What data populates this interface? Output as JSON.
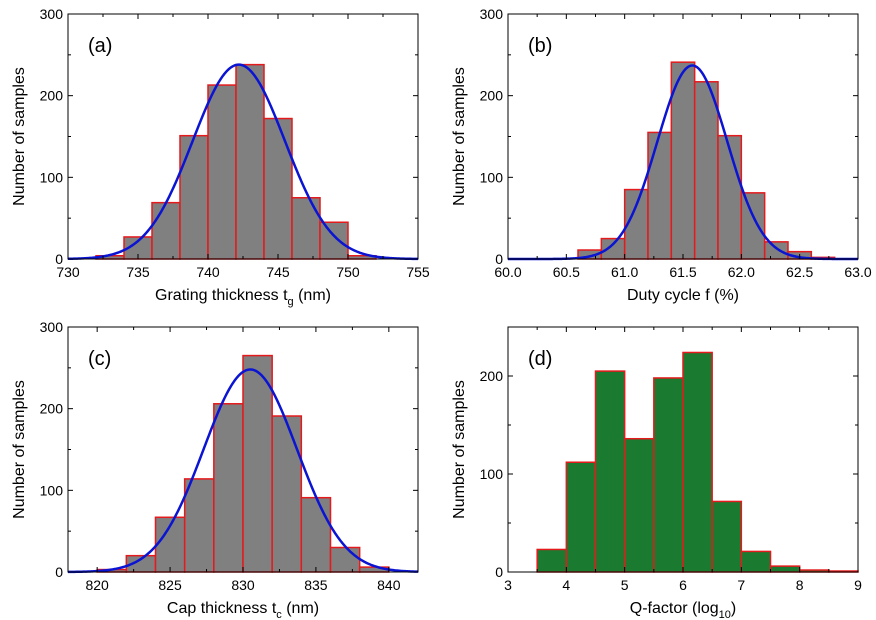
{
  "colors": {
    "gray_fill": "#808080",
    "red_edge": "#e41a1c",
    "green_fill": "#1a7a30",
    "curve": "#0a14d2"
  },
  "chart_data": [
    {
      "id": "a",
      "type": "bar",
      "panel_label": "(a)",
      "xlabel": "Grating thickness t",
      "xlabel_sub": "g",
      "xlabel_suffix": " (nm)",
      "ylabel": "Number of samples",
      "xlim": [
        730,
        755
      ],
      "ylim": [
        0,
        300
      ],
      "xticks": [
        730,
        735,
        740,
        745,
        750,
        755
      ],
      "xtick_labels": [
        "730",
        "735",
        "740",
        "745",
        "750",
        "755"
      ],
      "yticks": [
        0,
        100,
        200,
        300
      ],
      "ytick_labels": [
        "0",
        "100",
        "200",
        "300"
      ],
      "bins": [
        {
          "x0": 732,
          "x1": 734,
          "value": 4
        },
        {
          "x0": 734,
          "x1": 736,
          "value": 27
        },
        {
          "x0": 736,
          "x1": 738,
          "value": 69
        },
        {
          "x0": 738,
          "x1": 740,
          "value": 151
        },
        {
          "x0": 740,
          "x1": 742,
          "value": 213
        },
        {
          "x0": 742,
          "x1": 744,
          "value": 238
        },
        {
          "x0": 744,
          "x1": 746,
          "value": 172
        },
        {
          "x0": 746,
          "x1": 748,
          "value": 75
        },
        {
          "x0": 748,
          "x1": 750,
          "value": 45
        },
        {
          "x0": 750,
          "x1": 752,
          "value": 4
        }
      ],
      "fit": {
        "mean": 742.2,
        "sigma": 3.3,
        "peak": 238
      },
      "fill": "gray"
    },
    {
      "id": "b",
      "type": "bar",
      "panel_label": "(b)",
      "xlabel": "Duty cycle f (%)",
      "xlabel_sub": "",
      "xlabel_suffix": "",
      "ylabel": "Number of samples",
      "xlim": [
        60.0,
        63.0
      ],
      "ylim": [
        0,
        300
      ],
      "xticks": [
        60.0,
        60.5,
        61.0,
        61.5,
        62.0,
        62.5,
        63.0
      ],
      "xtick_labels": [
        "60.0",
        "60.5",
        "61.0",
        "61.5",
        "62.0",
        "62.5",
        "63.0"
      ],
      "yticks": [
        0,
        100,
        200,
        300
      ],
      "ytick_labels": [
        "0",
        "100",
        "200",
        "300"
      ],
      "bins": [
        {
          "x0": 60.6,
          "x1": 60.8,
          "value": 11
        },
        {
          "x0": 60.8,
          "x1": 61.0,
          "value": 25
        },
        {
          "x0": 61.0,
          "x1": 61.2,
          "value": 85
        },
        {
          "x0": 61.2,
          "x1": 61.4,
          "value": 155
        },
        {
          "x0": 61.4,
          "x1": 61.6,
          "value": 241
        },
        {
          "x0": 61.6,
          "x1": 61.8,
          "value": 217
        },
        {
          "x0": 61.8,
          "x1": 62.0,
          "value": 151
        },
        {
          "x0": 62.0,
          "x1": 62.2,
          "value": 81
        },
        {
          "x0": 62.2,
          "x1": 62.4,
          "value": 21
        },
        {
          "x0": 62.4,
          "x1": 62.6,
          "value": 9
        },
        {
          "x0": 62.6,
          "x1": 62.8,
          "value": 2
        }
      ],
      "fit": {
        "mean": 61.58,
        "sigma": 0.3,
        "peak": 237
      },
      "fill": "gray"
    },
    {
      "id": "c",
      "type": "bar",
      "panel_label": "(c)",
      "xlabel": "Cap thickness t",
      "xlabel_sub": "c",
      "xlabel_suffix": " (nm)",
      "ylabel": "Number of samples",
      "xlim": [
        818,
        842
      ],
      "ylim": [
        0,
        300
      ],
      "xticks": [
        820,
        825,
        830,
        835,
        840
      ],
      "xtick_labels": [
        "820",
        "825",
        "830",
        "835",
        "840"
      ],
      "yticks": [
        0,
        100,
        200,
        300
      ],
      "ytick_labels": [
        "0",
        "100",
        "200",
        "300"
      ],
      "bins": [
        {
          "x0": 820,
          "x1": 822,
          "value": 3
        },
        {
          "x0": 822,
          "x1": 824,
          "value": 20
        },
        {
          "x0": 824,
          "x1": 826,
          "value": 67
        },
        {
          "x0": 826,
          "x1": 828,
          "value": 114
        },
        {
          "x0": 828,
          "x1": 830,
          "value": 206
        },
        {
          "x0": 830,
          "x1": 832,
          "value": 265
        },
        {
          "x0": 832,
          "x1": 834,
          "value": 191
        },
        {
          "x0": 834,
          "x1": 836,
          "value": 91
        },
        {
          "x0": 836,
          "x1": 838,
          "value": 30
        },
        {
          "x0": 838,
          "x1": 840,
          "value": 6
        }
      ],
      "fit": {
        "mean": 830.5,
        "sigma": 3.2,
        "peak": 248
      },
      "fill": "gray"
    },
    {
      "id": "d",
      "type": "bar",
      "panel_label": "(d)",
      "xlabel": "Q-factor (log",
      "xlabel_sub": "10",
      "xlabel_suffix": ")",
      "ylabel": "Number of samples",
      "xlim": [
        3,
        9
      ],
      "ylim": [
        0,
        250
      ],
      "xticks": [
        3,
        4,
        5,
        6,
        7,
        8,
        9
      ],
      "xtick_labels": [
        "3",
        "4",
        "5",
        "6",
        "7",
        "8",
        "9"
      ],
      "yticks": [
        0,
        100,
        200
      ],
      "ytick_labels": [
        "0",
        "100",
        "200"
      ],
      "bins": [
        {
          "x0": 3.5,
          "x1": 4.0,
          "value": 23
        },
        {
          "x0": 4.0,
          "x1": 4.5,
          "value": 112
        },
        {
          "x0": 4.5,
          "x1": 5.0,
          "value": 205
        },
        {
          "x0": 5.0,
          "x1": 5.5,
          "value": 136
        },
        {
          "x0": 5.5,
          "x1": 6.0,
          "value": 198
        },
        {
          "x0": 6.0,
          "x1": 6.5,
          "value": 224
        },
        {
          "x0": 6.5,
          "x1": 7.0,
          "value": 72
        },
        {
          "x0": 7.0,
          "x1": 7.5,
          "value": 21
        },
        {
          "x0": 7.5,
          "x1": 8.0,
          "value": 6
        },
        {
          "x0": 8.0,
          "x1": 8.5,
          "value": 2
        },
        {
          "x0": 8.5,
          "x1": 9.0,
          "value": 1
        }
      ],
      "fit": null,
      "fill": "green"
    }
  ]
}
